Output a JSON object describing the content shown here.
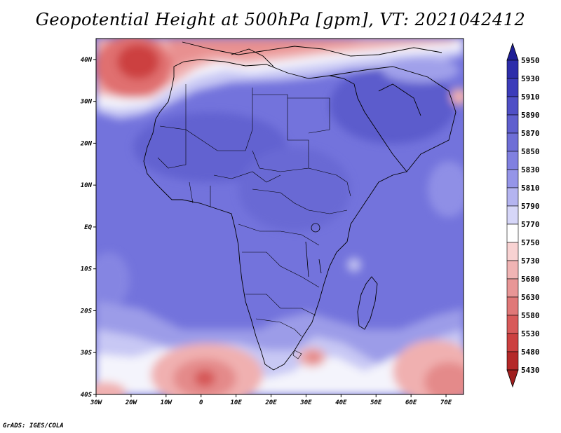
{
  "title": "Geopotential Height at 500hPa [gpm], VT: 2021042412",
  "credit": "GrADS: IGES/COLA",
  "lon_labels": [
    "30W",
    "20W",
    "10W",
    "0",
    "10E",
    "20E",
    "30E",
    "40E",
    "50E",
    "60E",
    "70E"
  ],
  "lat_labels": [
    "40N",
    "30N",
    "20N",
    "10N",
    "EQ",
    "10S",
    "20S",
    "30S",
    "40S"
  ],
  "colorbar": {
    "labels": [
      "5950",
      "5930",
      "5910",
      "5890",
      "5870",
      "5850",
      "5830",
      "5810",
      "5790",
      "5770",
      "5750",
      "5730",
      "5680",
      "5630",
      "5580",
      "5530",
      "5480",
      "5430"
    ],
    "colors": [
      "#1e1e96",
      "#2d2daa",
      "#3c3cba",
      "#4f4fc6",
      "#5f5fce",
      "#6e6ed6",
      "#8080e0",
      "#9595e8",
      "#b4b4f0",
      "#d6d6f8",
      "#ffffff",
      "#f8d2d2",
      "#f0b4b4",
      "#e89696",
      "#e07878",
      "#d85a5a",
      "#cc4040",
      "#b42828",
      "#a01e1e"
    ]
  },
  "chart_data": {
    "type": "heatmap",
    "title": "Geopotential Height at 500hPa [gpm], VT: 2021042412",
    "variable": "Geopotential Height at 500hPa",
    "units": "gpm",
    "valid_time": "2021042412",
    "x_range": [
      -30,
      75
    ],
    "y_range": [
      -40,
      45
    ],
    "contour_levels": [
      5430,
      5480,
      5530,
      5580,
      5630,
      5680,
      5730,
      5750,
      5770,
      5790,
      5810,
      5830,
      5850,
      5870,
      5890,
      5910,
      5930,
      5950
    ],
    "features": [
      {
        "label": "low",
        "lon": -17,
        "lat": 39,
        "value": 5680
      },
      {
        "label": "low",
        "lon": 0,
        "lat": -36,
        "value": 5680
      },
      {
        "label": "low",
        "lon": 33,
        "lat": -31,
        "value": 5750
      }
    ]
  }
}
